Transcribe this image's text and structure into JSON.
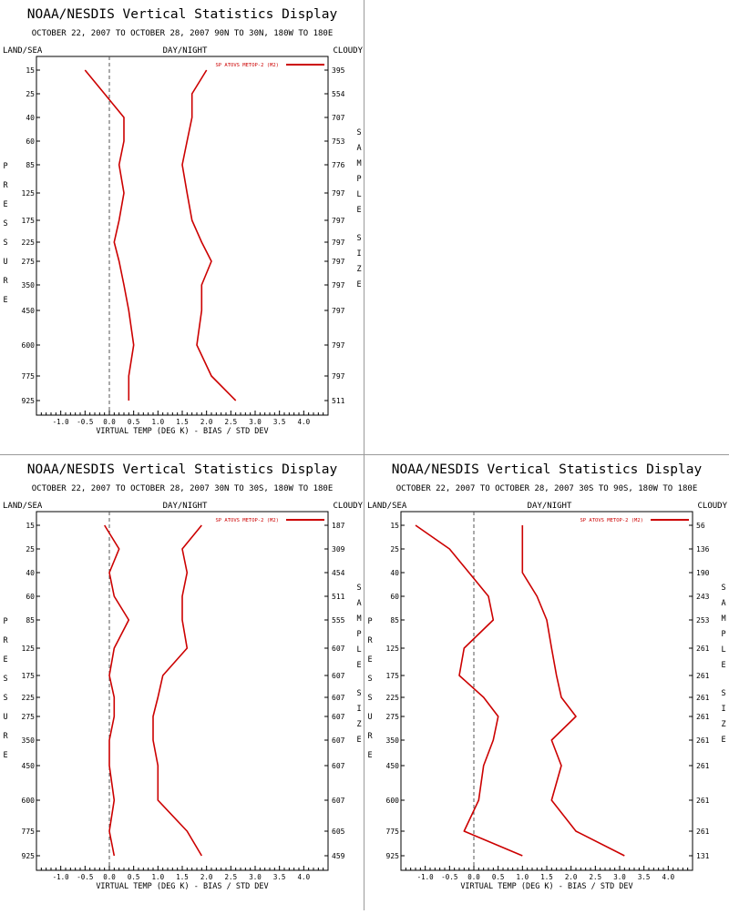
{
  "chart_data": [
    {
      "type": "line",
      "title": "NOAA/NESDIS Vertical Statistics Display",
      "subtitle": "OCTOBER 22, 2007 TO OCTOBER 28, 2007 90N TO 30N, 180W TO 180E",
      "label_left": "LAND/SEA",
      "label_center": "DAY/NIGHT",
      "label_right": "CLOUDY",
      "ylabel": "PRESSURE",
      "ylabel_right": "SAMPLE SIZE",
      "xlabel": "VIRTUAL TEMP (DEG K) - BIAS / STD DEV",
      "legend": "SP ATOVS METOP-2 (M2)",
      "xlim": [
        -1.5,
        4.5
      ],
      "xticks": [
        "-1.0",
        "-0.5",
        "0.0",
        "0.5",
        "1.0",
        "1.5",
        "2.0",
        "2.5",
        "3.0",
        "3.5",
        "4.0"
      ],
      "pressure_levels": [
        "15",
        "25",
        "40",
        "60",
        "85",
        "125",
        "175",
        "225",
        "275",
        "350",
        "450",
        "600",
        "775",
        "925"
      ],
      "sample_size": [
        "395",
        "554",
        "707",
        "753",
        "776",
        "797",
        "797",
        "797",
        "797",
        "797",
        "797",
        "797",
        "797",
        "511"
      ],
      "series": [
        {
          "values": [
            -0.5,
            -0.1,
            0.3,
            0.3,
            0.2,
            0.3,
            0.2,
            0.1,
            0.2,
            0.3,
            0.4,
            0.5,
            0.4,
            0.4
          ]
        },
        {
          "values": [
            2.0,
            1.7,
            1.7,
            1.6,
            1.5,
            1.6,
            1.7,
            1.9,
            2.1,
            1.9,
            1.9,
            1.8,
            2.1,
            2.6
          ]
        }
      ]
    },
    {
      "type": "line",
      "title": "NOAA/NESDIS Vertical Statistics Display",
      "subtitle": "OCTOBER 22, 2007 TO OCTOBER 28, 2007 30N TO 30S, 180W TO 180E",
      "label_left": "LAND/SEA",
      "label_center": "DAY/NIGHT",
      "label_right": "CLOUDY",
      "ylabel": "PRESSURE",
      "ylabel_right": "SAMPLE SIZE",
      "xlabel": "VIRTUAL TEMP (DEG K) - BIAS / STD DEV",
      "legend": "SP ATOVS METOP-2 (M2)",
      "xlim": [
        -1.5,
        4.5
      ],
      "xticks": [
        "-1.0",
        "-0.5",
        "0.0",
        "0.5",
        "1.0",
        "1.5",
        "2.0",
        "2.5",
        "3.0",
        "3.5",
        "4.0"
      ],
      "pressure_levels": [
        "15",
        "25",
        "40",
        "60",
        "85",
        "125",
        "175",
        "225",
        "275",
        "350",
        "450",
        "600",
        "775",
        "925"
      ],
      "sample_size": [
        "187",
        "309",
        "454",
        "511",
        "555",
        "607",
        "607",
        "607",
        "607",
        "607",
        "607",
        "607",
        "605",
        "459"
      ],
      "series": [
        {
          "values": [
            -0.1,
            0.2,
            0.0,
            0.1,
            0.4,
            0.1,
            0.0,
            0.1,
            0.1,
            0.0,
            0.0,
            0.1,
            0.0,
            0.1
          ]
        },
        {
          "values": [
            1.9,
            1.5,
            1.6,
            1.5,
            1.5,
            1.6,
            1.1,
            1.0,
            0.9,
            0.9,
            1.0,
            1.0,
            1.6,
            1.9
          ]
        }
      ]
    },
    {
      "type": "line",
      "title": "NOAA/NESDIS Vertical Statistics Display",
      "subtitle": "OCTOBER 22, 2007 TO OCTOBER 28, 2007 30S TO 90S, 180W TO 180E",
      "label_left": "LAND/SEA",
      "label_center": "DAY/NIGHT",
      "label_right": "CLOUDY",
      "ylabel": "PRESSURE",
      "ylabel_right": "SAMPLE SIZE",
      "xlabel": "VIRTUAL TEMP (DEG K) - BIAS / STD DEV",
      "legend": "SP ATOVS METOP-2 (M2)",
      "xlim": [
        -1.5,
        4.5
      ],
      "xticks": [
        "-1.0",
        "-0.5",
        "0.0",
        "0.5",
        "1.0",
        "1.5",
        "2.0",
        "2.5",
        "3.0",
        "3.5",
        "4.0"
      ],
      "pressure_levels": [
        "15",
        "25",
        "40",
        "60",
        "85",
        "125",
        "175",
        "225",
        "275",
        "350",
        "450",
        "600",
        "775",
        "925"
      ],
      "sample_size": [
        "56",
        "136",
        "190",
        "243",
        "253",
        "261",
        "261",
        "261",
        "261",
        "261",
        "261",
        "261",
        "261",
        "131"
      ],
      "series": [
        {
          "values": [
            -1.2,
            -0.5,
            -0.1,
            0.3,
            0.4,
            -0.2,
            -0.3,
            0.2,
            0.5,
            0.4,
            0.2,
            0.1,
            -0.2,
            1.0
          ]
        },
        {
          "values": [
            1.0,
            1.0,
            1.0,
            1.3,
            1.5,
            1.6,
            1.7,
            1.8,
            2.1,
            1.6,
            1.8,
            1.6,
            2.1,
            3.1
          ]
        }
      ]
    }
  ]
}
